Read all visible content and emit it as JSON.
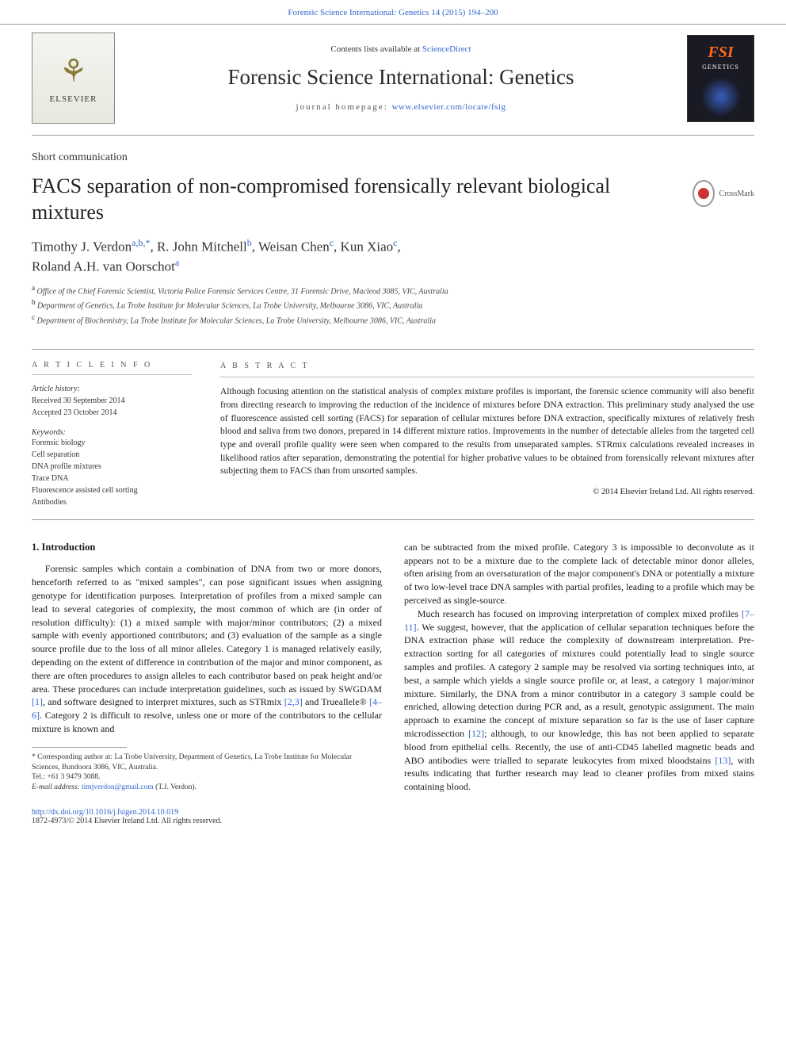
{
  "top_citation": "Forensic Science International: Genetics 14 (2015) 194–200",
  "masthead": {
    "contents_prefix": "Contents lists available at ",
    "contents_link": "ScienceDirect",
    "journal_title": "Forensic Science International: Genetics",
    "homepage_prefix": "journal homepage: ",
    "homepage_url": "www.elsevier.com/locate/fsig",
    "elsevier_name": "ELSEVIER",
    "cover_fsi": "FSI",
    "cover_gen": "GENETICS"
  },
  "article": {
    "type": "Short communication",
    "title": "FACS separation of non-compromised forensically relevant biological mixtures",
    "crossmark": "CrossMark",
    "authors_html": "Timothy J. Verdon",
    "aff_a": "a,b,",
    "star": "*",
    "comma1": ", R. John Mitchell",
    "aff_b": "b",
    "comma2": ", Weisan Chen",
    "aff_c": "c",
    "comma3": ", Kun Xiao",
    "aff_c2": "c",
    "comma4": ",",
    "author5": "Roland A.H. van Oorschot",
    "aff_a2": "a",
    "affiliations": {
      "a": "Office of the Chief Forensic Scientist, Victoria Police Forensic Services Centre, 31 Forensic Drive, Macleod 3085, VIC, Australia",
      "b": "Department of Genetics, La Trobe Institute for Molecular Sciences, La Trobe University, Melbourne 3086, VIC, Australia",
      "c": "Department of Biochemistry, La Trobe Institute for Molecular Sciences, La Trobe University, Melbourne 3086, VIC, Australia"
    }
  },
  "info": {
    "header": "A R T I C L E  I N F O",
    "history_label": "Article history:",
    "received": "Received 30 September 2014",
    "accepted": "Accepted 23 October 2014",
    "keywords_label": "Keywords:",
    "keywords": [
      "Forensic biology",
      "Cell separation",
      "DNA profile mixtures",
      "Trace DNA",
      "Fluorescence assisted cell sorting",
      "Antibodies"
    ]
  },
  "abstract": {
    "header": "A B S T R A C T",
    "text": "Although focusing attention on the statistical analysis of complex mixture profiles is important, the forensic science community will also benefit from directing research to improving the reduction of the incidence of mixtures before DNA extraction. This preliminary study analysed the use of fluorescence assisted cell sorting (FACS) for separation of cellular mixtures before DNA extraction, specifically mixtures of relatively fresh blood and saliva from two donors, prepared in 14 different mixture ratios. Improvements in the number of detectable alleles from the targeted cell type and overall profile quality were seen when compared to the results from unseparated samples. STRmix calculations revealed increases in likelihood ratios after separation, demonstrating the potential for higher probative values to be obtained from forensically relevant mixtures after subjecting them to FACS than from unsorted samples.",
    "copyright": "© 2014 Elsevier Ireland Ltd. All rights reserved."
  },
  "body": {
    "sec1_title": "1. Introduction",
    "col1_p1a": "Forensic samples which contain a combination of DNA from two or more donors, henceforth referred to as \"mixed samples\", can pose significant issues when assigning genotype for identification purposes. Interpretation of profiles from a mixed sample can lead to several categories of complexity, the most common of which are (in order of resolution difficulty): (1) a mixed sample with major/minor contributors; (2) a mixed sample with evenly apportioned contributors; and (3) evaluation of the sample as a single source profile due to the loss of all minor alleles. Category 1 is managed relatively easily, depending on the extent of difference in contribution of the major and minor component, as there are often procedures to assign alleles to each contributor based on peak height and/or area. These procedures can include interpretation guidelines, such as issued by SWGDAM ",
    "ref1": "[1]",
    "col1_p1b": ", and software designed to interpret mixtures, such as STRmix ",
    "ref23": "[2,3]",
    "col1_p1c": " and Trueallele® ",
    "ref46": "[4–6]",
    "col1_p1d": ". Category 2 is difficult to resolve, unless one or more of the contributors to the cellular mixture is known and",
    "col2_p1": "can be subtracted from the mixed profile. Category 3 is impossible to deconvolute as it appears not to be a mixture due to the complete lack of detectable minor donor alleles, often arising from an oversaturation of the major component's DNA or potentially a mixture of two low-level trace DNA samples with partial profiles, leading to a profile which may be perceived as single-source.",
    "col2_p2a": "Much research has focused on improving interpretation of complex mixed profiles ",
    "ref711": "[7–11]",
    "col2_p2b": ". We suggest, however, that the application of cellular separation techniques before the DNA extraction phase will reduce the complexity of downstream interpretation. Pre-extraction sorting for all categories of mixtures could potentially lead to single source samples and profiles. A category 2 sample may be resolved via sorting techniques into, at best, a sample which yields a single source profile or, at least, a category 1 major/minor mixture. Similarly, the DNA from a minor contributor in a category 3 sample could be enriched, allowing detection during PCR and, as a result, genotypic assignment. The main approach to examine the concept of mixture separation so far is the use of laser capture microdissection ",
    "ref12": "[12]",
    "col2_p2c": "; although, to our knowledge, this has not been applied to separate blood from epithelial cells. Recently, the use of anti-CD45 labelled magnetic beads and ABO antibodies were trialled to separate leukocytes from mixed bloodstains ",
    "ref13": "[13]",
    "col2_p2d": ", with results indicating that further research may lead to cleaner profiles from mixed stains containing blood."
  },
  "footnotes": {
    "corr": "* Corresponding author at: La Trobe University, Department of Genetics, La Trobe Institute for Molecular Sciences, Bundoora 3086, VIC, Australia.",
    "tel": "Tel.: +61 3 9479 3088.",
    "email_label": "E-mail address: ",
    "email": "timjverdon@gmail.com",
    "email_suffix": " (T.J. Verdon)."
  },
  "footer": {
    "doi": "http://dx.doi.org/10.1016/j.fsigen.2014.10.019",
    "issn_line": "1872-4973/© 2014 Elsevier Ireland Ltd. All rights reserved."
  },
  "colors": {
    "link": "#3366cc",
    "rule": "#999999",
    "accent_orange": "#ff6b1a"
  }
}
